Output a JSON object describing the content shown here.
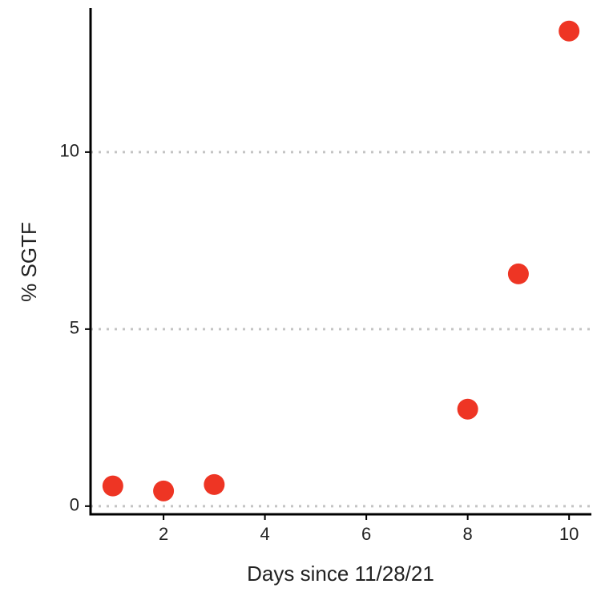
{
  "chart_data": {
    "type": "scatter",
    "x_label": "Days since 11/28/21",
    "y_label": "% SGTF",
    "x": [
      1,
      2,
      3,
      8,
      9,
      10
    ],
    "values": [
      0.57,
      0.43,
      0.61,
      2.74,
      6.56,
      13.42
    ],
    "color": "#ee3524",
    "xlim": [
      0.56,
      10.44
    ],
    "ylim": [
      -0.23,
      14.07
    ],
    "xticks": [
      2,
      4,
      6,
      8,
      10
    ],
    "yticks": [
      0,
      5,
      10
    ],
    "grid": true
  }
}
